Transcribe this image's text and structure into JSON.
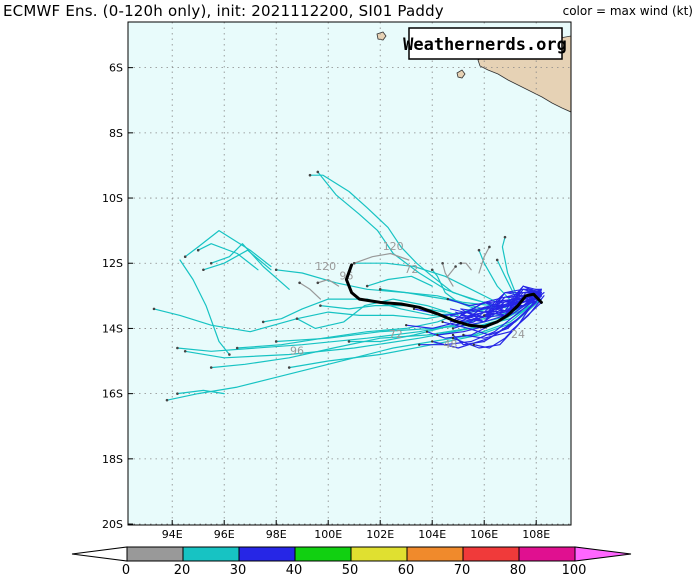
{
  "header": {
    "title": "ECMWF Ens. (0-120h only), init: 2021112200, SI01 Paddy",
    "legend_note": "color = max wind (kt)"
  },
  "watermark": "Weathernerds.org",
  "colors": {
    "ocean": "#e8fbfb",
    "land": "#e6d2b5",
    "ens_cyan": "#17c3c3",
    "ens_blue": "#2626e6",
    "ens_gray": "#999999",
    "mean_track": "#000000"
  },
  "map": {
    "lon_labels": [
      "94E",
      "96E",
      "98E",
      "100E",
      "102E",
      "104E",
      "106E",
      "108E"
    ],
    "lat_labels": [
      "6S",
      "8S",
      "10S",
      "12S",
      "14S",
      "16S",
      "18S",
      "20S"
    ]
  },
  "hour_labels": [
    {
      "text": "120",
      "lon": 102.5,
      "lat": -11.6
    },
    {
      "text": "120",
      "lon": 99.9,
      "lat": -12.2
    },
    {
      "text": "96",
      "lon": 100.7,
      "lat": -12.5
    },
    {
      "text": "72",
      "lon": 103.2,
      "lat": -12.3
    },
    {
      "text": "72",
      "lon": 102.6,
      "lat": -14.3
    },
    {
      "text": "96",
      "lon": 98.8,
      "lat": -14.8
    },
    {
      "text": "48",
      "lon": 104.7,
      "lat": -14.6
    },
    {
      "text": "24",
      "lon": 107.3,
      "lat": -14.3
    }
  ],
  "color_scale": {
    "labels": [
      "0",
      "20",
      "30",
      "40",
      "50",
      "60",
      "70",
      "80",
      "100"
    ],
    "colors": [
      "#999999",
      "#17c3c3",
      "#2626e6",
      "#11d011",
      "#e0e030",
      "#f08a2c",
      "#f03a3a",
      "#e01090"
    ],
    "low_arrow_color": "#ffffff",
    "high_arrow_color": "#ff66ff"
  }
}
